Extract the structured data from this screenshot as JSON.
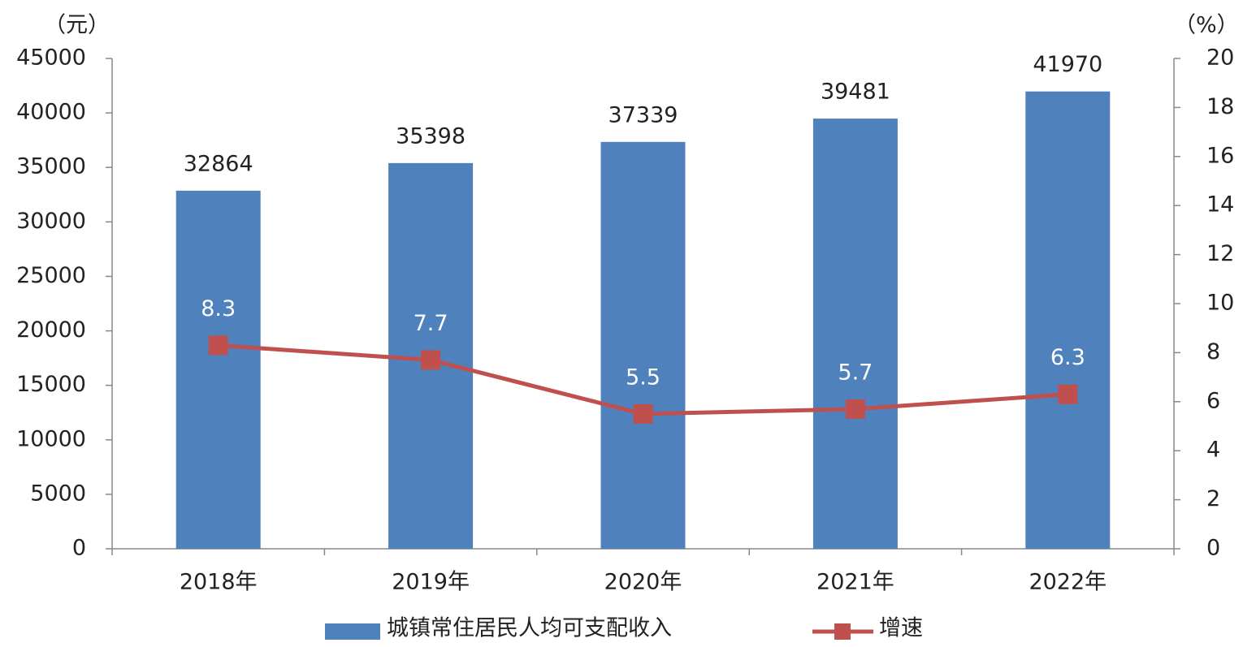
{
  "chart_data": {
    "type": "bar",
    "y_unit": "（元）",
    "y2_unit": "（%）",
    "categories": [
      "2018年",
      "2019年",
      "2020年",
      "2021年",
      "2022年"
    ],
    "series": [
      {
        "name": "城镇常住居民人均可支配收入",
        "color": "#4f81bd",
        "type": "bar",
        "values": [
          32864,
          35398,
          37339,
          39481,
          41970
        ]
      },
      {
        "name": "增速",
        "color": "#c0504d",
        "type": "line",
        "axis": "y2",
        "values": [
          8.3,
          7.7,
          5.5,
          5.7,
          6.3
        ]
      }
    ],
    "ylim": [
      0,
      45000
    ],
    "yticks": [
      0,
      5000,
      10000,
      15000,
      20000,
      25000,
      30000,
      35000,
      40000,
      45000
    ],
    "y2lim": [
      0,
      20
    ],
    "y2ticks": [
      0,
      2,
      4,
      6,
      8,
      10,
      12,
      14,
      16,
      18,
      20
    ]
  }
}
